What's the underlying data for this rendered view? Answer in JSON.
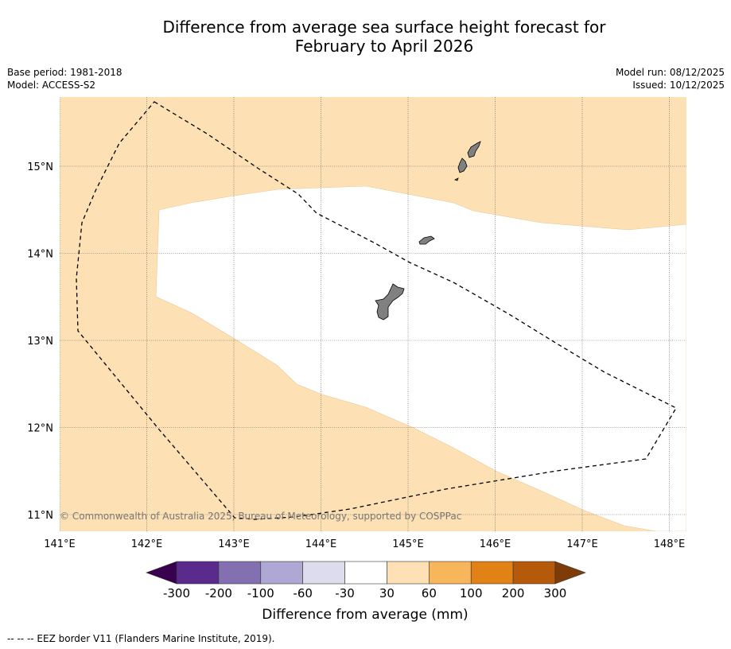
{
  "title_line1": "Difference from average sea surface height forecast for",
  "title_line2": "February to April 2026",
  "meta": {
    "base_period": "Base period: 1981-2018",
    "model": "Model: ACCESS-S2",
    "model_run": "Model run: 08/12/2025",
    "issued": "Issued: 10/12/2025"
  },
  "map": {
    "lon_labels": [
      "141°E",
      "142°E",
      "143°E",
      "144°E",
      "145°E",
      "146°E",
      "147°E",
      "148°E"
    ],
    "lat_labels": [
      "15°N",
      "14°N",
      "13°N",
      "12°N",
      "11°N"
    ],
    "copyright": "© Commonwealth of Australia 2025, Bureau of Meteorology, supported by COSPPac",
    "colors": {
      "band_30_60": "#fde0b4",
      "land": "#808080",
      "eez_line": "#000000"
    }
  },
  "colorbar": {
    "label": "Difference from average (mm)",
    "ticks": [
      "-300",
      "-200",
      "-100",
      "-60",
      "-30",
      "30",
      "60",
      "100",
      "200",
      "300"
    ],
    "colors": [
      "#3a0050",
      "#5a2a8c",
      "#8270b0",
      "#b0a8d4",
      "#dcdcec",
      "#ffffff",
      "#fde0b4",
      "#f8b65c",
      "#e08215",
      "#b45a0a",
      "#7f3b08"
    ]
  },
  "footer": "--  --  -- EEZ border V11 (Flanders Marine Institute, 2019)."
}
